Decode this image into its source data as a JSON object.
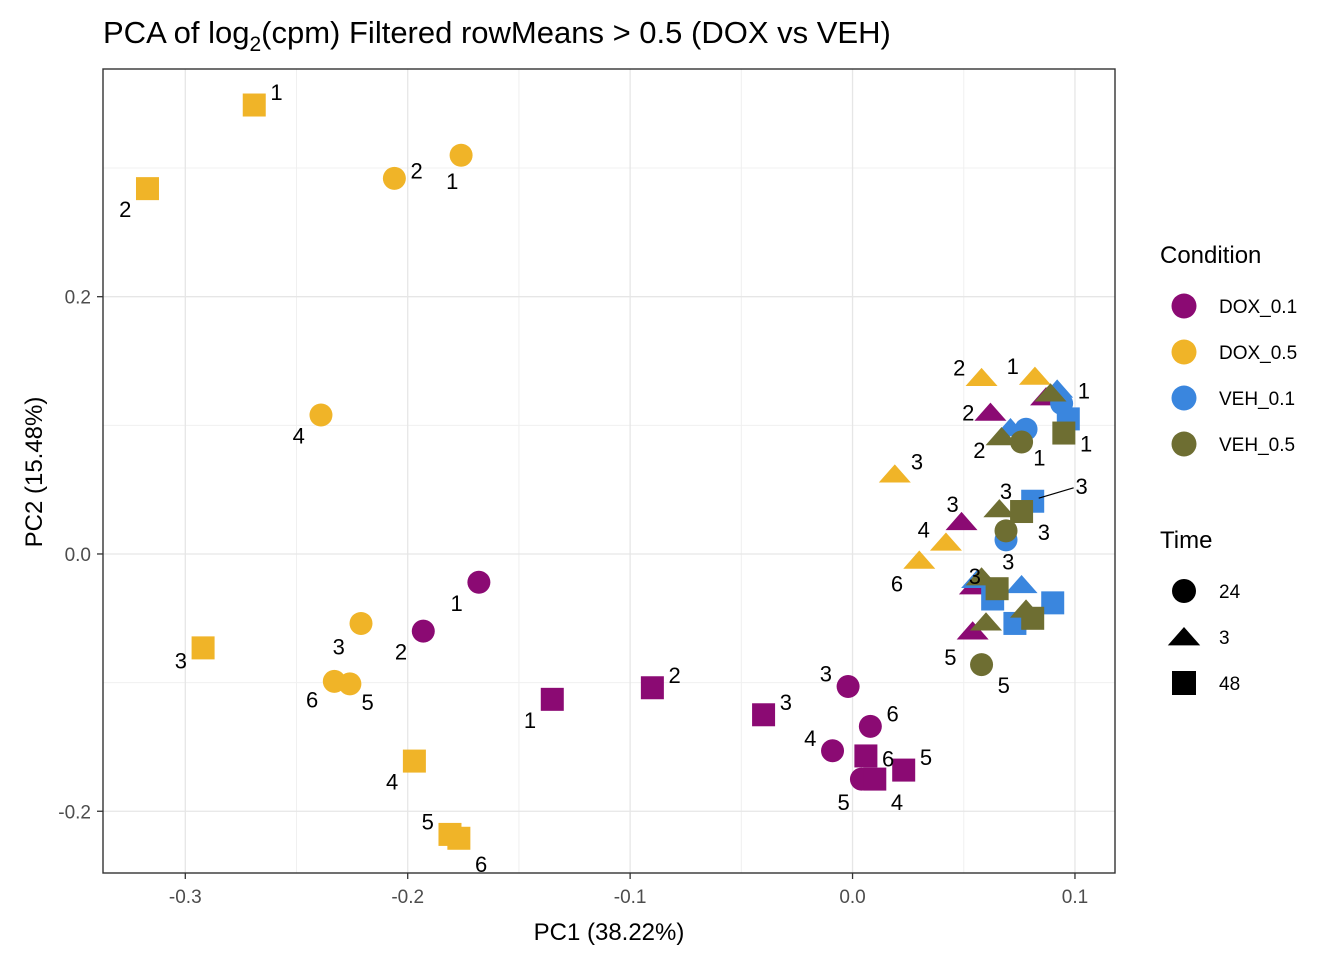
{
  "chart_data": {
    "type": "scatter",
    "title": "PCA of log",
    "title_sub": "2",
    "title_rest": "(cpm) Filtered rowMeans > 0.5 (DOX vs VEH)",
    "xlabel": "PC1 (38.22%)",
    "ylabel": "PC2 (15.48%)",
    "xlim": [
      -0.337,
      0.118
    ],
    "ylim": [
      -0.248,
      0.377
    ],
    "xticks": [
      -0.3,
      -0.2,
      -0.1,
      0.0,
      0.1
    ],
    "xtick_labels": [
      "-0.3",
      "-0.2",
      "-0.1",
      "0.0",
      "0.1"
    ],
    "yticks": [
      -0.2,
      0.0,
      0.2
    ],
    "ytick_labels": [
      "-0.2",
      "0.0",
      "0.2"
    ],
    "grid": true,
    "legend_position": "right",
    "colors": {
      "DOX_0.1": "#8B0A73",
      "DOX_0.5": "#F0B428",
      "VEH_0.1": "#3A86DE",
      "VEH_0.5": "#6E6E32"
    },
    "legend": {
      "condition_title": "Condition",
      "conditions": [
        "DOX_0.1",
        "DOX_0.5",
        "VEH_0.1",
        "VEH_0.5"
      ],
      "time_title": "Time",
      "times": [
        {
          "label": "24",
          "shape": "circle"
        },
        {
          "label": "3",
          "shape": "triangle"
        },
        {
          "label": "48",
          "shape": "square"
        }
      ]
    },
    "points": [
      {
        "x": -0.269,
        "y": 0.349,
        "condition": "DOX_0.5",
        "time": "48",
        "label": "1",
        "lx": 0.01,
        "ly": 0.01
      },
      {
        "x": -0.317,
        "y": 0.284,
        "condition": "DOX_0.5",
        "time": "48",
        "label": "2",
        "lx": -0.01,
        "ly": -0.016
      },
      {
        "x": -0.292,
        "y": -0.073,
        "condition": "DOX_0.5",
        "time": "48",
        "label": "3",
        "lx": -0.01,
        "ly": -0.01
      },
      {
        "x": -0.197,
        "y": -0.161,
        "condition": "DOX_0.5",
        "time": "48",
        "label": "4",
        "lx": -0.01,
        "ly": -0.016
      },
      {
        "x": -0.181,
        "y": -0.218,
        "condition": "DOX_0.5",
        "time": "48",
        "label": "5",
        "lx": -0.01,
        "ly": 0.01
      },
      {
        "x": -0.177,
        "y": -0.221,
        "condition": "DOX_0.5",
        "time": "48",
        "label": "6",
        "lx": 0.01,
        "ly": -0.02
      },
      {
        "x": -0.176,
        "y": 0.31,
        "condition": "DOX_0.5",
        "time": "24",
        "label": "1",
        "lx": -0.004,
        "ly": -0.02
      },
      {
        "x": -0.206,
        "y": 0.292,
        "condition": "DOX_0.5",
        "time": "24",
        "label": "2",
        "lx": 0.01,
        "ly": 0.006
      },
      {
        "x": -0.221,
        "y": -0.054,
        "condition": "DOX_0.5",
        "time": "24",
        "label": "3",
        "lx": -0.01,
        "ly": -0.018
      },
      {
        "x": -0.239,
        "y": 0.108,
        "condition": "DOX_0.5",
        "time": "24",
        "label": "4",
        "lx": -0.01,
        "ly": -0.016
      },
      {
        "x": -0.226,
        "y": -0.101,
        "condition": "DOX_0.5",
        "time": "24",
        "label": "5",
        "lx": 0.008,
        "ly": -0.014
      },
      {
        "x": -0.233,
        "y": -0.099,
        "condition": "DOX_0.5",
        "time": "24",
        "label": "6",
        "lx": -0.01,
        "ly": -0.014
      },
      {
        "x": 0.082,
        "y": 0.138,
        "condition": "DOX_0.5",
        "time": "3",
        "label": "1",
        "lx": -0.01,
        "ly": 0.008
      },
      {
        "x": 0.058,
        "y": 0.137,
        "condition": "DOX_0.5",
        "time": "3",
        "label": "2",
        "lx": -0.01,
        "ly": 0.008
      },
      {
        "x": 0.019,
        "y": 0.062,
        "condition": "DOX_0.5",
        "time": "3",
        "label": "3",
        "lx": 0.01,
        "ly": 0.01
      },
      {
        "x": 0.042,
        "y": 0.009,
        "condition": "DOX_0.5",
        "time": "3",
        "label": "4",
        "lx": -0.01,
        "ly": 0.01
      },
      {
        "x": 0.03,
        "y": -0.005,
        "condition": "DOX_0.5",
        "time": "3",
        "label": "6",
        "lx": -0.01,
        "ly": -0.018
      },
      {
        "x": -0.168,
        "y": -0.022,
        "condition": "DOX_0.1",
        "time": "24",
        "label": "1",
        "lx": -0.01,
        "ly": -0.016
      },
      {
        "x": -0.193,
        "y": -0.06,
        "condition": "DOX_0.1",
        "time": "24",
        "label": "2",
        "lx": -0.01,
        "ly": -0.016
      },
      {
        "x": -0.002,
        "y": -0.103,
        "condition": "DOX_0.1",
        "time": "24",
        "label": "3",
        "lx": -0.01,
        "ly": 0.01
      },
      {
        "x": -0.009,
        "y": -0.153,
        "condition": "DOX_0.1",
        "time": "24",
        "label": "4",
        "lx": -0.01,
        "ly": 0.01
      },
      {
        "x": 0.004,
        "y": -0.175,
        "condition": "DOX_0.1",
        "time": "24",
        "label": "5",
        "lx": -0.008,
        "ly": -0.018
      },
      {
        "x": 0.008,
        "y": -0.134,
        "condition": "DOX_0.1",
        "time": "24",
        "label": "6",
        "lx": 0.01,
        "ly": 0.01
      },
      {
        "x": -0.135,
        "y": -0.113,
        "condition": "DOX_0.1",
        "time": "48",
        "label": "1",
        "lx": -0.01,
        "ly": -0.016
      },
      {
        "x": -0.09,
        "y": -0.104,
        "condition": "DOX_0.1",
        "time": "48",
        "label": "2",
        "lx": 0.01,
        "ly": 0.01
      },
      {
        "x": -0.04,
        "y": -0.125,
        "condition": "DOX_0.1",
        "time": "48",
        "label": "3",
        "lx": 0.01,
        "ly": 0.01
      },
      {
        "x": 0.01,
        "y": -0.175,
        "condition": "DOX_0.1",
        "time": "48",
        "label": "4",
        "lx": 0.01,
        "ly": -0.018
      },
      {
        "x": 0.023,
        "y": -0.168,
        "condition": "DOX_0.1",
        "time": "48",
        "label": "5",
        "lx": 0.01,
        "ly": 0.01
      },
      {
        "x": 0.006,
        "y": -0.157,
        "condition": "DOX_0.1",
        "time": "48",
        "label": "6",
        "lx": 0.01,
        "ly": -0.002
      },
      {
        "x": 0.087,
        "y": 0.122,
        "condition": "DOX_0.1",
        "time": "3",
        "label": "",
        "lx": 0,
        "ly": 0
      },
      {
        "x": 0.062,
        "y": 0.11,
        "condition": "DOX_0.1",
        "time": "3",
        "label": "2",
        "lx": -0.01,
        "ly": 0.0
      },
      {
        "x": 0.049,
        "y": 0.025,
        "condition": "DOX_0.1",
        "time": "3",
        "label": "3",
        "lx": -0.004,
        "ly": 0.014
      },
      {
        "x": 0.055,
        "y": -0.025,
        "condition": "DOX_0.1",
        "time": "3",
        "label": "",
        "lx": 0,
        "ly": 0
      },
      {
        "x": 0.054,
        "y": -0.06,
        "condition": "DOX_0.1",
        "time": "3",
        "label": "5",
        "lx": -0.01,
        "ly": -0.02
      },
      {
        "x": 0.094,
        "y": 0.117,
        "condition": "VEH_0.1",
        "time": "24",
        "label": "1",
        "lx": 0.01,
        "ly": 0.01
      },
      {
        "x": 0.078,
        "y": 0.097,
        "condition": "VEH_0.1",
        "time": "24",
        "label": "",
        "lx": 0,
        "ly": 0
      },
      {
        "x": 0.069,
        "y": 0.011,
        "condition": "VEH_0.1",
        "time": "24",
        "label": "",
        "lx": 0,
        "ly": 0
      },
      {
        "x": 0.092,
        "y": 0.128,
        "condition": "VEH_0.1",
        "time": "3",
        "label": "",
        "lx": 0,
        "ly": 0
      },
      {
        "x": 0.071,
        "y": 0.098,
        "condition": "VEH_0.1",
        "time": "3",
        "label": "",
        "lx": 0,
        "ly": 0
      },
      {
        "x": 0.056,
        "y": -0.02,
        "condition": "VEH_0.1",
        "time": "3",
        "label": "",
        "lx": 0,
        "ly": 0
      },
      {
        "x": 0.076,
        "y": -0.024,
        "condition": "VEH_0.1",
        "time": "3",
        "label": "",
        "lx": 0,
        "ly": 0
      },
      {
        "x": 0.097,
        "y": 0.105,
        "condition": "VEH_0.1",
        "time": "48",
        "label": "",
        "lx": 0,
        "ly": 0
      },
      {
        "x": 0.081,
        "y": 0.041,
        "condition": "VEH_0.1",
        "time": "48",
        "label": "3",
        "lx": 0.022,
        "ly": 0.012,
        "leader": true
      },
      {
        "x": 0.063,
        "y": -0.035,
        "condition": "VEH_0.1",
        "time": "48",
        "label": "",
        "lx": 0,
        "ly": 0
      },
      {
        "x": 0.073,
        "y": -0.054,
        "condition": "VEH_0.1",
        "time": "48",
        "label": "",
        "lx": 0,
        "ly": 0
      },
      {
        "x": 0.09,
        "y": -0.038,
        "condition": "VEH_0.1",
        "time": "48",
        "label": "",
        "lx": 0,
        "ly": 0
      },
      {
        "x": 0.076,
        "y": 0.087,
        "condition": "VEH_0.5",
        "time": "24",
        "label": "1",
        "lx": 0.008,
        "ly": -0.012
      },
      {
        "x": 0.069,
        "y": 0.018,
        "condition": "VEH_0.5",
        "time": "24",
        "label": "",
        "lx": 0,
        "ly": 0
      },
      {
        "x": 0.058,
        "y": -0.086,
        "condition": "VEH_0.5",
        "time": "24",
        "label": "5",
        "lx": 0.01,
        "ly": -0.016
      },
      {
        "x": 0.089,
        "y": 0.125,
        "condition": "VEH_0.5",
        "time": "3",
        "label": "",
        "lx": 0,
        "ly": 0
      },
      {
        "x": 0.067,
        "y": 0.091,
        "condition": "VEH_0.5",
        "time": "3",
        "label": "2",
        "lx": -0.01,
        "ly": -0.01
      },
      {
        "x": 0.066,
        "y": 0.035,
        "condition": "VEH_0.5",
        "time": "3",
        "label": "3",
        "lx": 0.003,
        "ly": 0.014
      },
      {
        "x": 0.058,
        "y": -0.018,
        "condition": "VEH_0.5",
        "time": "3",
        "label": "3",
        "lx": 0.012,
        "ly": 0.012
      },
      {
        "x": 0.06,
        "y": -0.053,
        "condition": "VEH_0.5",
        "time": "3",
        "label": "",
        "lx": 0,
        "ly": 0
      },
      {
        "x": 0.078,
        "y": -0.043,
        "condition": "VEH_0.5",
        "time": "3",
        "label": "",
        "lx": 0,
        "ly": 0
      },
      {
        "x": 0.095,
        "y": 0.094,
        "condition": "VEH_0.5",
        "time": "48",
        "label": "1",
        "lx": 0.01,
        "ly": -0.008
      },
      {
        "x": 0.076,
        "y": 0.033,
        "condition": "VEH_0.5",
        "time": "48",
        "label": "3",
        "lx": 0.01,
        "ly": -0.016
      },
      {
        "x": 0.065,
        "y": -0.027,
        "condition": "VEH_0.5",
        "time": "48",
        "label": "3",
        "lx": -0.01,
        "ly": 0.01
      },
      {
        "x": 0.081,
        "y": -0.05,
        "condition": "VEH_0.5",
        "time": "48",
        "label": "",
        "lx": 0,
        "ly": 0
      }
    ]
  }
}
